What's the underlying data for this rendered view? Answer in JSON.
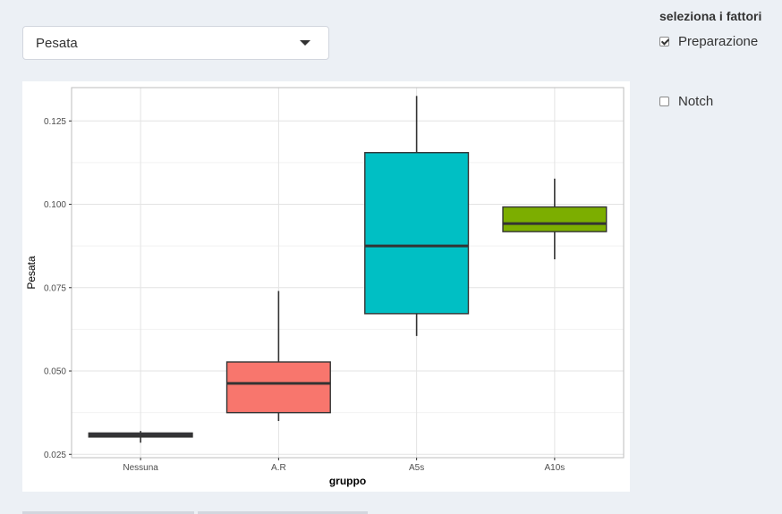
{
  "select": {
    "value": "Pesata"
  },
  "side_panel": {
    "heading": "seleziona i fattori",
    "options": [
      {
        "label": "Preparazione",
        "checked": true
      },
      {
        "label": "Notch",
        "checked": false
      }
    ]
  },
  "chart_data": {
    "type": "box",
    "xlabel": "gruppo",
    "ylabel": "Pesata",
    "ylim": [
      0.024,
      0.135
    ],
    "y_ticks": [
      0.025,
      0.05,
      0.075,
      0.1,
      0.125
    ],
    "y_tick_labels": [
      "0.025",
      "0.050",
      "0.075",
      "0.100",
      "0.125"
    ],
    "categories": [
      "Nessuna",
      "A.R",
      "A5s",
      "A10s"
    ],
    "grid": true,
    "legend": "none",
    "boxes": [
      {
        "category": "Nessuna",
        "min": 0.0285,
        "q1": 0.0302,
        "median": 0.0307,
        "q3": 0.0314,
        "max": 0.032,
        "color": "#3b3b4f"
      },
      {
        "category": "A.R",
        "min": 0.035,
        "q1": 0.0375,
        "median": 0.0463,
        "q3": 0.0527,
        "max": 0.074,
        "color": "#f8766d"
      },
      {
        "category": "A5s",
        "min": 0.0605,
        "q1": 0.0672,
        "median": 0.0875,
        "q3": 0.1155,
        "max": 0.1325,
        "color": "#00bfc4"
      },
      {
        "category": "A10s",
        "min": 0.0835,
        "q1": 0.0918,
        "median": 0.0942,
        "q3": 0.0992,
        "max": 0.1077,
        "color": "#7cae00"
      }
    ]
  }
}
